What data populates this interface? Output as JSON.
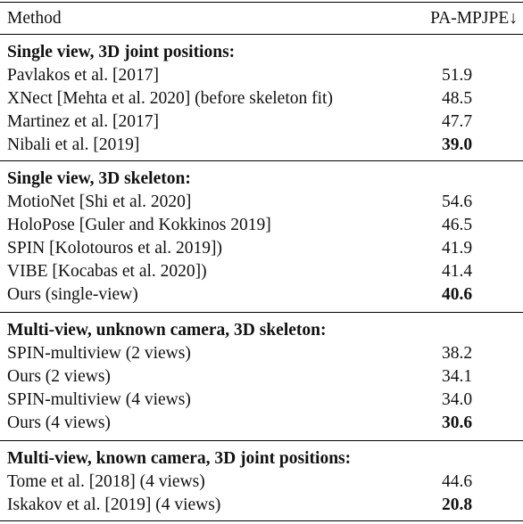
{
  "header": {
    "method": "Method",
    "metric": "PA-MPJPE↓"
  },
  "sections": [
    {
      "title": "Single view, 3D joint positions:",
      "rows": [
        {
          "method": "Pavlakos et al. [2017]",
          "value": "51.9",
          "bold": false
        },
        {
          "method": "XNect [Mehta et al. 2020] (before skeleton fit)",
          "value": "48.5",
          "bold": false
        },
        {
          "method": "Martinez et al. [2017]",
          "value": "47.7",
          "bold": false
        },
        {
          "method": "Nibali et al. [2019]",
          "value": "39.0",
          "bold": true
        }
      ]
    },
    {
      "title": "Single view, 3D skeleton:",
      "rows": [
        {
          "method": "MotioNet [Shi et al. 2020]",
          "value": "54.6",
          "bold": false
        },
        {
          "method": "HoloPose [Guler and Kokkinos 2019]",
          "value": "46.5",
          "bold": false
        },
        {
          "method": "SPIN [Kolotouros et al. 2019])",
          "value": "41.9",
          "bold": false
        },
        {
          "method": "VIBE [Kocabas et al. 2020])",
          "value": "41.4",
          "bold": false
        },
        {
          "method": "Ours (single-view)",
          "value": "40.6",
          "bold": true
        }
      ]
    },
    {
      "title": "Multi-view, unknown camera, 3D skeleton:",
      "rows": [
        {
          "method": "SPIN-multiview (2 views)",
          "value": "38.2",
          "bold": false
        },
        {
          "method": "Ours (2 views)",
          "value": "34.1",
          "bold": false
        },
        {
          "method": "SPIN-multiview (4 views)",
          "value": "34.0",
          "bold": false
        },
        {
          "method": "Ours (4 views)",
          "value": "30.6",
          "bold": true
        }
      ]
    },
    {
      "title": "Multi-view, known camera, 3D joint positions:",
      "rows": [
        {
          "method": "Tome et al. [2018] (4 views)",
          "value": "44.6",
          "bold": false
        },
        {
          "method": "Iskakov et al. [2019] (4 views)",
          "value": "20.8",
          "bold": true
        }
      ]
    }
  ]
}
